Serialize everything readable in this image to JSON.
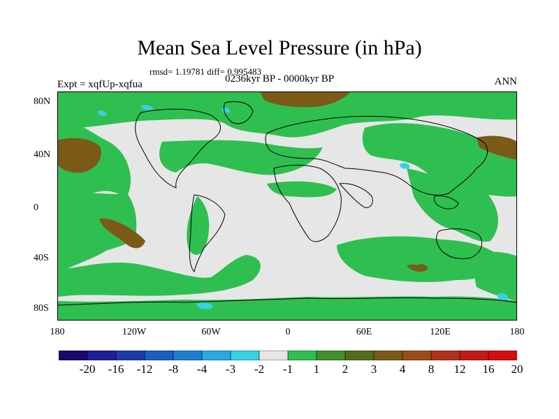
{
  "title": "Mean Sea Level Pressure (in hPa)",
  "stats": "rmsd= 1.19781 diff= 0.995483",
  "left_label": "Expt = xqfUp-xqfua",
  "center_label": "0236kyr BP - 0000kyr BP",
  "right_label": "ANN",
  "lat_ticks": [
    "80N",
    "40N",
    "0",
    "40S",
    "80S"
  ],
  "lon_ticks": [
    "180",
    "120W",
    "60W",
    "0",
    "60E",
    "120E",
    "180"
  ],
  "colorbar": {
    "colors": [
      "#1a0a6e",
      "#1f1f9c",
      "#1c3aa8",
      "#1a5ec0",
      "#1e7fd0",
      "#29a9e1",
      "#37d0e6",
      "#e6e6e6",
      "#2fbf50",
      "#3f8f2c",
      "#556b1b",
      "#7a5a16",
      "#9a4e17",
      "#b1321a",
      "#c21b17",
      "#d40e0e"
    ],
    "labels": [
      "-20",
      "-16",
      "-12",
      "-8",
      "-4",
      "-3",
      "-2",
      "-1",
      "1",
      "2",
      "3",
      "4",
      "8",
      "12",
      "16",
      "20"
    ]
  },
  "map": {
    "background_color": "#e6e6e6",
    "positive_color": "#2fbf50",
    "strong_color": "#7a5a16",
    "negative_color": "#37d0e6"
  }
}
